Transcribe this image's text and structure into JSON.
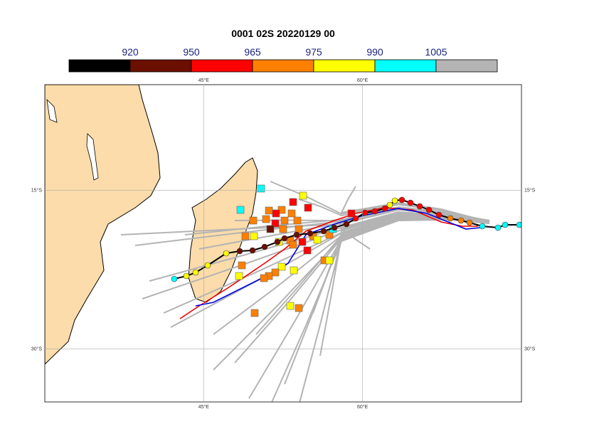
{
  "header": {
    "title": "0001 02S 20220129 00"
  },
  "colorbar": {
    "colors": [
      "#000000",
      "#6b1000",
      "#ff0000",
      "#ff8000",
      "#ffff00",
      "#00ffff",
      "#b4b4b4"
    ],
    "ticks": [
      920,
      950,
      965,
      975,
      990,
      1005
    ]
  },
  "map": {
    "lonlim": [
      30,
      75
    ],
    "latlim": [
      -5,
      -35
    ],
    "lonticks": [
      {
        "value": 45,
        "label": "45°E"
      },
      {
        "value": 60,
        "label": "60°E"
      }
    ],
    "latticks": [
      {
        "value": -15,
        "label": "15°S"
      },
      {
        "value": -30,
        "label": "30°S"
      }
    ]
  }
}
